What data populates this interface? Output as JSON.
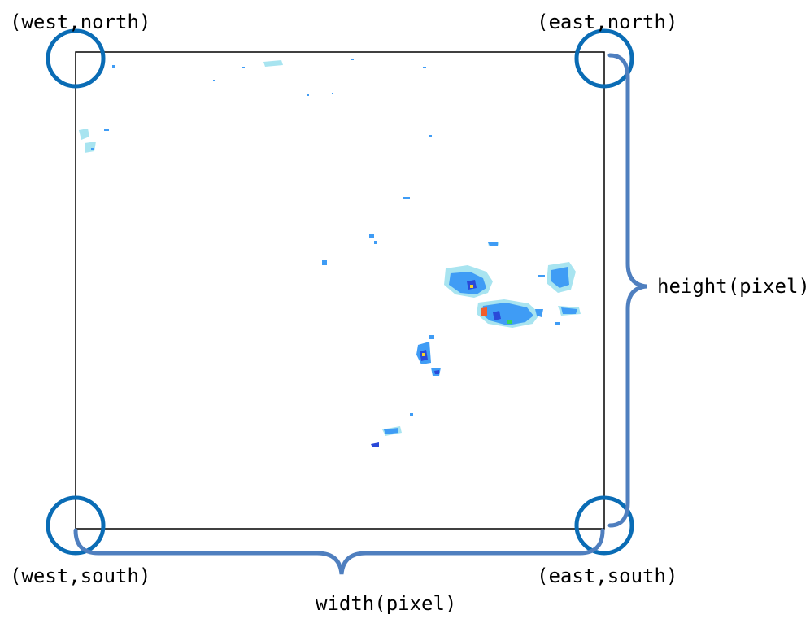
{
  "labels": {
    "west_north": "(west,north)",
    "east_north": "(east,north)",
    "west_south": "(west,south)",
    "east_south": "(east,south)",
    "width": "width(pixel)",
    "height": "height(pixel)"
  },
  "colors": {
    "frame": "#000000",
    "circle": "#0a6cb5",
    "brace": "#4f7fbf",
    "rain_light": "#a8e4f0",
    "rain_mid": "#3f9cf5",
    "rain_heavy": "#2a49d8",
    "rain_peak": "#f25c2b"
  }
}
